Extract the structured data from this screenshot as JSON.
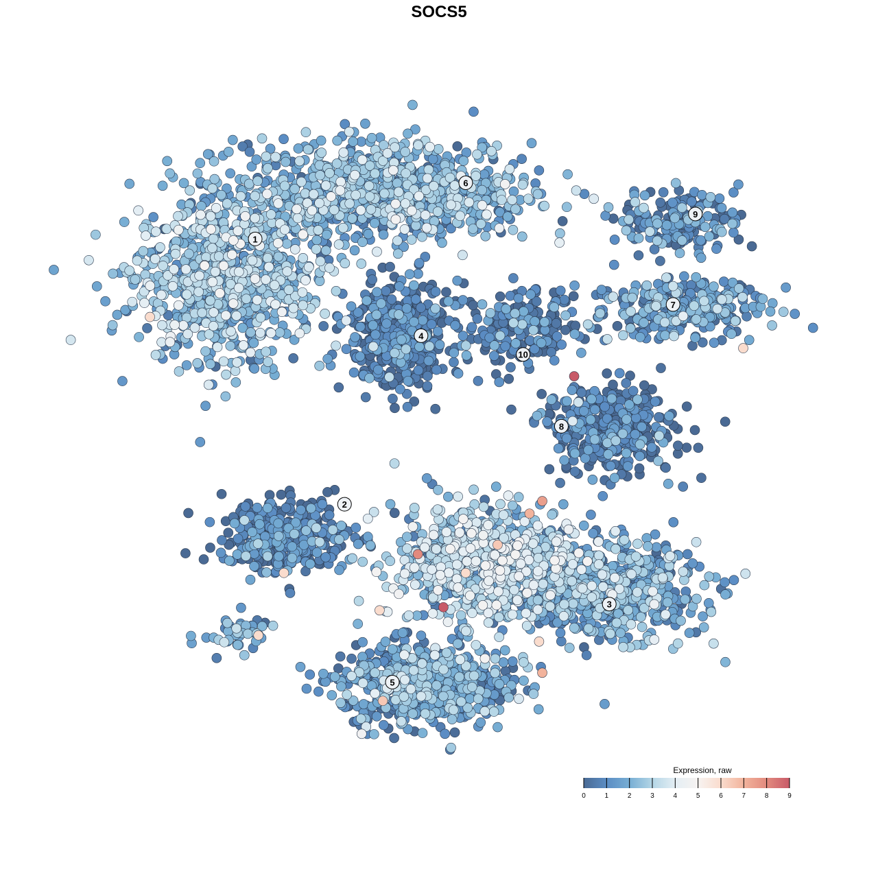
{
  "chart_data": {
    "type": "scatter",
    "title": "SOCS5",
    "xlabel": "",
    "ylabel": "",
    "xlim": [
      -10,
      10
    ],
    "ylim": [
      -10,
      10
    ],
    "grid": false,
    "axes_visible": false,
    "color_by": "expression",
    "legend": {
      "title": "Expression, raw",
      "placement": "bottom-right",
      "ticks": [
        "0",
        "1",
        "2",
        "3",
        "4",
        "5",
        "6",
        "7",
        "8",
        "9"
      ],
      "range": [
        0,
        9
      ],
      "colors": [
        "#4a6a94",
        "#5b8dc4",
        "#77aed4",
        "#b4d6e6",
        "#e4eef4",
        "#f7f3f1",
        "#fadccd",
        "#f2b39c",
        "#e28a7e",
        "#c85a68"
      ]
    },
    "clusters": [
      {
        "label": "1",
        "center": [
          -7.2,
          5.1
        ],
        "sd": [
          2.4,
          2.2
        ],
        "n": 900,
        "mean_expression": 2.2,
        "label_pos": [
          -6.3,
          6.3
        ]
      },
      {
        "label": "6",
        "center": [
          -2.2,
          7.8
        ],
        "sd": [
          3.8,
          1.3
        ],
        "n": 900,
        "mean_expression": 2.0,
        "label_pos": [
          0.3,
          8.1
        ]
      },
      {
        "label": "4",
        "center": [
          -1.8,
          3.2
        ],
        "sd": [
          1.3,
          1.4
        ],
        "n": 450,
        "mean_expression": 0.3,
        "label_pos": [
          -1.1,
          3.2
        ]
      },
      {
        "label": "10",
        "center": [
          2.0,
          3.5
        ],
        "sd": [
          1.4,
          1.0
        ],
        "n": 200,
        "mean_expression": 0.3,
        "label_pos": [
          2.1,
          2.6
        ]
      },
      {
        "label": "9",
        "center": [
          7.0,
          6.9
        ],
        "sd": [
          1.6,
          0.8
        ],
        "n": 180,
        "mean_expression": 1.0,
        "label_pos": [
          7.5,
          7.1
        ]
      },
      {
        "label": "7",
        "center": [
          7.0,
          4.1
        ],
        "sd": [
          2.3,
          0.8
        ],
        "n": 300,
        "mean_expression": 1.3,
        "label_pos": [
          6.8,
          4.2
        ]
      },
      {
        "label": "8",
        "center": [
          4.8,
          0.2
        ],
        "sd": [
          1.7,
          1.2
        ],
        "n": 380,
        "mean_expression": 0.3,
        "label_pos": [
          3.3,
          0.3
        ]
      },
      {
        "label": "2",
        "center": [
          -5.3,
          -3.2
        ],
        "sd": [
          1.7,
          1.0
        ],
        "n": 350,
        "mean_expression": 0.5,
        "label_pos": [
          -3.5,
          -2.2
        ]
      },
      {
        "label": "3",
        "center": [
          4.6,
          -4.9
        ],
        "sd": [
          2.5,
          1.3
        ],
        "n": 650,
        "mean_expression": 1.8,
        "label_pos": [
          4.8,
          -5.4
        ]
      },
      {
        "label": "",
        "center": [
          0.8,
          -4.1
        ],
        "sd": [
          2.3,
          1.5
        ],
        "n": 750,
        "mean_expression": 2.8,
        "label_pos": null
      },
      {
        "label": "5",
        "center": [
          -1.0,
          -8.0
        ],
        "sd": [
          2.2,
          1.1
        ],
        "n": 650,
        "mean_expression": 1.5,
        "label_pos": [
          -2.0,
          -7.9
        ]
      },
      {
        "label": "",
        "center": [
          -6.8,
          -6.3
        ],
        "sd": [
          0.9,
          0.5
        ],
        "n": 50,
        "mean_expression": 1.5,
        "label_pos": null
      }
    ],
    "high_expression_points": [
      {
        "x": 3.7,
        "y": 1.9,
        "expression": 9
      },
      {
        "x": -0.4,
        "y": -5.5,
        "expression": 9
      },
      {
        "x": -1.2,
        "y": -3.8,
        "expression": 8
      },
      {
        "x": 2.7,
        "y": -2.1,
        "expression": 7.5
      },
      {
        "x": 2.3,
        "y": -2.5,
        "expression": 7
      },
      {
        "x": 1.3,
        "y": -3.5,
        "expression": 6.5
      },
      {
        "x": 2.7,
        "y": -7.6,
        "expression": 7
      },
      {
        "x": -9.6,
        "y": 3.8,
        "expression": 6
      },
      {
        "x": 9.0,
        "y": 2.8,
        "expression": 6
      },
      {
        "x": -5.4,
        "y": -4.4,
        "expression": 6
      },
      {
        "x": -2.4,
        "y": -5.6,
        "expression": 6
      },
      {
        "x": -6.2,
        "y": -6.4,
        "expression": 6
      },
      {
        "x": -2.3,
        "y": -8.5,
        "expression": 6.5
      },
      {
        "x": 0.3,
        "y": -4.4,
        "expression": 6
      },
      {
        "x": 2.6,
        "y": -6.6,
        "expression": 6
      }
    ]
  }
}
